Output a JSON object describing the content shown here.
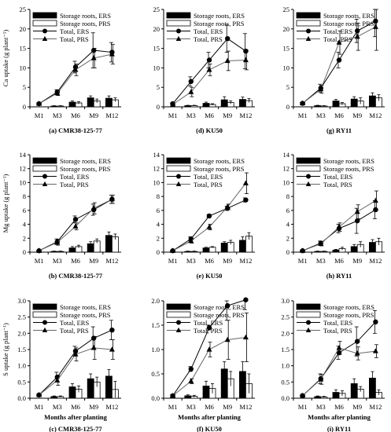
{
  "figure": {
    "categories": [
      "M1",
      "M3",
      "M6",
      "M9",
      "M12"
    ],
    "legend": [
      "Storage roots, ERS",
      "Storage roots, PRS",
      "Total, ERS",
      "Total, PRS"
    ],
    "row_ylabels": [
      "Ca uptake (g plant⁻¹)",
      "Mg uptake (g plant⁻¹)",
      "S uptake (g plant⁻¹)"
    ],
    "x_axis_title": "Months after planting",
    "colors": {
      "ers": "#000000",
      "prs": "#ffffff",
      "total_ers": "#000000",
      "total_prs": "#666666"
    }
  },
  "chart_data": [
    {
      "id": "a",
      "type": "bar",
      "caption": "(a) CMR38-125-77",
      "ylim": [
        0,
        25
      ],
      "yticks": [
        "0",
        "5",
        "10",
        "15",
        "20",
        "25"
      ],
      "categories": [
        "M1",
        "M3",
        "M6",
        "M9",
        "M12"
      ],
      "show_ylabel": true,
      "show_xtitle": false,
      "series": [
        {
          "name": "Storage roots, ERS",
          "kind": "bar",
          "values": [
            0,
            0.2,
            1.2,
            2.3,
            2.2
          ],
          "err": [
            0,
            0.1,
            0.3,
            0.5,
            0.6
          ]
        },
        {
          "name": "Storage roots, PRS",
          "kind": "bar",
          "values": [
            0,
            0.2,
            1.0,
            1.5,
            1.8
          ],
          "err": [
            0,
            0.1,
            0.3,
            0.5,
            0.5
          ]
        },
        {
          "name": "Total, ERS",
          "kind": "line",
          "values": [
            0.8,
            3.8,
            10.2,
            14.5,
            14.0
          ],
          "err": [
            0.2,
            0.6,
            1.5,
            4.5,
            2.5
          ]
        },
        {
          "name": "Total, PRS",
          "kind": "line",
          "values": [
            0.8,
            3.5,
            9.5,
            12.5,
            13.5
          ],
          "err": [
            0.2,
            0.6,
            1.5,
            2.5,
            2.5
          ]
        }
      ]
    },
    {
      "id": "d",
      "type": "bar",
      "caption": "(d) KU50",
      "ylim": [
        0,
        25
      ],
      "yticks": [
        "0",
        "5",
        "10",
        "15",
        "20",
        "25"
      ],
      "categories": [
        "M1",
        "M3",
        "M6",
        "M9",
        "M12"
      ],
      "show_ylabel": false,
      "show_xtitle": false,
      "series": [
        {
          "name": "Storage roots, ERS",
          "kind": "bar",
          "values": [
            0,
            0.3,
            0.9,
            1.8,
            1.9
          ],
          "err": [
            0,
            0.1,
            0.3,
            0.8,
            0.6
          ]
        },
        {
          "name": "Storage roots, PRS",
          "kind": "bar",
          "values": [
            0,
            0.3,
            0.6,
            1.1,
            1.6
          ],
          "err": [
            0,
            0.1,
            0.2,
            0.4,
            0.5
          ]
        },
        {
          "name": "Total, ERS",
          "kind": "line",
          "values": [
            0.8,
            6.5,
            12.0,
            17.5,
            14.3
          ],
          "err": [
            0.2,
            1.2,
            2.0,
            3.5,
            4.5
          ]
        },
        {
          "name": "Total, PRS",
          "kind": "line",
          "values": [
            0.6,
            3.8,
            9.5,
            11.8,
            12.0
          ],
          "err": [
            0.2,
            1.2,
            1.5,
            2.5,
            2.5
          ]
        }
      ]
    },
    {
      "id": "g",
      "type": "bar",
      "caption": "(g) RY11",
      "ylim": [
        0,
        25
      ],
      "yticks": [
        "0",
        "5",
        "10",
        "15",
        "20",
        "25"
      ],
      "categories": [
        "M1",
        "M3",
        "M6",
        "M9",
        "M12"
      ],
      "show_ylabel": false,
      "show_xtitle": false,
      "series": [
        {
          "name": "Storage roots, ERS",
          "kind": "bar",
          "values": [
            0,
            0.3,
            1.5,
            2.0,
            2.8
          ],
          "err": [
            0,
            0.1,
            0.4,
            0.6,
            0.8
          ]
        },
        {
          "name": "Storage roots, PRS",
          "kind": "bar",
          "values": [
            0,
            0.2,
            0.8,
            1.5,
            2.3
          ],
          "err": [
            0,
            0.1,
            0.3,
            0.8,
            0.8
          ]
        },
        {
          "name": "Total, ERS",
          "kind": "line",
          "values": [
            0.9,
            4.8,
            12.0,
            19.5,
            22.0
          ],
          "err": [
            0.2,
            1.0,
            2.0,
            3.0,
            4.0
          ]
        },
        {
          "name": "Total, PRS",
          "kind": "line",
          "values": [
            0.9,
            4.5,
            16.5,
            18.0,
            20.5
          ],
          "err": [
            0.2,
            1.0,
            3.0,
            3.5,
            6.0
          ]
        }
      ]
    },
    {
      "id": "b",
      "type": "bar",
      "caption": "(b) CMR38-125-77",
      "ylim": [
        0,
        14
      ],
      "yticks": [
        "0",
        "2",
        "4",
        "6",
        "8",
        "10",
        "12",
        "14"
      ],
      "categories": [
        "M1",
        "M3",
        "M6",
        "M9",
        "M12"
      ],
      "show_ylabel": true,
      "show_xtitle": false,
      "series": [
        {
          "name": "Storage roots, ERS",
          "kind": "bar",
          "values": [
            0,
            0.1,
            0.6,
            1.2,
            2.4
          ],
          "err": [
            0,
            0.05,
            0.2,
            0.3,
            0.5
          ]
        },
        {
          "name": "Storage roots, PRS",
          "kind": "bar",
          "values": [
            0,
            0.1,
            0.8,
            1.6,
            2.2
          ],
          "err": [
            0,
            0.05,
            0.2,
            0.3,
            0.4
          ]
        },
        {
          "name": "Total, ERS",
          "kind": "line",
          "values": [
            0.2,
            1.5,
            4.7,
            6.1,
            7.6
          ],
          "err": [
            0.05,
            0.4,
            0.5,
            0.8,
            0.6
          ]
        },
        {
          "name": "Total, PRS",
          "kind": "line",
          "values": [
            0.2,
            1.4,
            3.7,
            6.3,
            7.6
          ],
          "err": [
            0.05,
            0.4,
            0.5,
            0.8,
            0.6
          ]
        }
      ]
    },
    {
      "id": "e",
      "type": "bar",
      "caption": "(e) KU50",
      "ylim": [
        0,
        14
      ],
      "yticks": [
        "0",
        "2",
        "4",
        "6",
        "8",
        "10",
        "12",
        "14"
      ],
      "categories": [
        "M1",
        "M3",
        "M6",
        "M9",
        "M12"
      ],
      "show_ylabel": false,
      "show_xtitle": false,
      "series": [
        {
          "name": "Storage roots, ERS",
          "kind": "bar",
          "values": [
            0,
            0.1,
            0.6,
            1.3,
            1.7
          ],
          "err": [
            0,
            0.05,
            0.1,
            0.2,
            0.5
          ]
        },
        {
          "name": "Storage roots, PRS",
          "kind": "bar",
          "values": [
            0,
            0.1,
            0.7,
            1.4,
            2.3
          ],
          "err": [
            0,
            0.05,
            0.1,
            0.3,
            0.5
          ]
        },
        {
          "name": "Total, ERS",
          "kind": "line",
          "values": [
            0.2,
            1.9,
            5.2,
            6.3,
            7.5
          ],
          "err": [
            0.05,
            0.3,
            0.2,
            0.3,
            0.3
          ]
        },
        {
          "name": "Total, PRS",
          "kind": "line",
          "values": [
            0.2,
            1.6,
            3.6,
            6.5,
            9.9
          ],
          "err": [
            0.05,
            0.3,
            0.4,
            0.4,
            1.5
          ]
        }
      ]
    },
    {
      "id": "h",
      "type": "bar",
      "caption": "(h) RY11",
      "ylim": [
        0,
        14
      ],
      "yticks": [
        "0",
        "2",
        "4",
        "6",
        "8",
        "10",
        "12",
        "14"
      ],
      "categories": [
        "M1",
        "M3",
        "M6",
        "M9",
        "M12"
      ],
      "show_ylabel": false,
      "show_xtitle": false,
      "series": [
        {
          "name": "Storage roots, ERS",
          "kind": "bar",
          "values": [
            0,
            0.1,
            0.3,
            0.8,
            1.4
          ],
          "err": [
            0,
            0.05,
            0.1,
            0.3,
            0.4
          ]
        },
        {
          "name": "Storage roots, PRS",
          "kind": "bar",
          "values": [
            0,
            0.1,
            0.5,
            1.1,
            1.5
          ],
          "err": [
            0,
            0.05,
            0.2,
            0.4,
            0.5
          ]
        },
        {
          "name": "Total, ERS",
          "kind": "line",
          "values": [
            0.2,
            1.3,
            3.4,
            4.5,
            6.1
          ],
          "err": [
            0.05,
            0.3,
            0.6,
            1.8,
            1.3
          ]
        },
        {
          "name": "Total, PRS",
          "kind": "line",
          "values": [
            0.2,
            1.2,
            3.6,
            5.8,
            7.4
          ],
          "err": [
            0.05,
            0.3,
            0.6,
            1.0,
            1.4
          ]
        }
      ]
    },
    {
      "id": "c",
      "type": "bar",
      "caption": "(c) CMR38-125-77",
      "ylim": [
        0,
        3
      ],
      "yticks": [
        "0.0",
        "0.5",
        "1.0",
        "1.5",
        "2.0",
        "2.5",
        "3.0"
      ],
      "categories": [
        "M1",
        "M3",
        "M6",
        "M9",
        "M12"
      ],
      "show_ylabel": true,
      "show_xtitle": true,
      "series": [
        {
          "name": "Storage roots, ERS",
          "kind": "bar",
          "values": [
            0,
            0.05,
            0.35,
            0.6,
            0.68
          ],
          "err": [
            0,
            0.02,
            0.1,
            0.15,
            0.2
          ]
        },
        {
          "name": "Storage roots, PRS",
          "kind": "bar",
          "values": [
            0,
            0.05,
            0.28,
            0.5,
            0.27
          ],
          "err": [
            0,
            0.02,
            0.1,
            0.15,
            0.25
          ]
        },
        {
          "name": "Total, ERS",
          "kind": "line",
          "values": [
            0.1,
            0.65,
            1.45,
            1.85,
            2.1
          ],
          "err": [
            0.02,
            0.15,
            0.15,
            0.35,
            0.3
          ]
        },
        {
          "name": "Total, PRS",
          "kind": "line",
          "values": [
            0.1,
            0.55,
            1.35,
            1.55,
            1.5
          ],
          "err": [
            0.02,
            0.15,
            0.2,
            0.35,
            0.3
          ]
        }
      ]
    },
    {
      "id": "f",
      "type": "bar",
      "caption": "(f) KU50",
      "ylim": [
        0,
        2
      ],
      "yticks": [
        "0.0",
        "0.5",
        "1.0",
        "1.5",
        "2.0"
      ],
      "categories": [
        "M1",
        "M3",
        "M6",
        "M9",
        "M12"
      ],
      "show_ylabel": false,
      "show_xtitle": true,
      "series": [
        {
          "name": "Storage roots, ERS",
          "kind": "bar",
          "values": [
            0,
            0.05,
            0.25,
            0.6,
            0.55
          ],
          "err": [
            0,
            0.02,
            0.1,
            0.15,
            0.2
          ]
        },
        {
          "name": "Storage roots, PRS",
          "kind": "bar",
          "values": [
            0,
            0.04,
            0.2,
            0.4,
            0.3
          ],
          "err": [
            0,
            0.02,
            0.1,
            0.15,
            0.2
          ]
        },
        {
          "name": "Total, ERS",
          "kind": "line",
          "values": [
            0.05,
            0.6,
            1.45,
            1.9,
            2.02
          ],
          "err": [
            0.02,
            0.05,
            0.05,
            0.3,
            0.2
          ]
        },
        {
          "name": "Total, PRS",
          "kind": "line",
          "values": [
            0.05,
            0.35,
            1.0,
            1.2,
            1.25
          ],
          "err": [
            0.02,
            0.05,
            0.15,
            0.4,
            0.5
          ]
        }
      ]
    },
    {
      "id": "i",
      "type": "bar",
      "caption": "(i) RY11",
      "ylim": [
        0,
        3
      ],
      "yticks": [
        "0.0",
        "0.5",
        "1.0",
        "1.5",
        "2.0",
        "2.5",
        "3.0"
      ],
      "categories": [
        "M1",
        "M3",
        "M6",
        "M9",
        "M12"
      ],
      "show_ylabel": false,
      "show_xtitle": true,
      "series": [
        {
          "name": "Storage roots, ERS",
          "kind": "bar",
          "values": [
            0,
            0.05,
            0.18,
            0.45,
            0.62
          ],
          "err": [
            0,
            0.02,
            0.08,
            0.15,
            0.2
          ]
        },
        {
          "name": "Storage roots, PRS",
          "kind": "bar",
          "values": [
            0,
            0.04,
            0.15,
            0.28,
            0.18
          ],
          "err": [
            0,
            0.02,
            0.08,
            0.08,
            0.08
          ]
        },
        {
          "name": "Total, ERS",
          "kind": "line",
          "values": [
            0.08,
            0.6,
            1.4,
            1.75,
            2.35
          ],
          "err": [
            0.02,
            0.15,
            0.2,
            0.45,
            0.35
          ]
        },
        {
          "name": "Total, PRS",
          "kind": "line",
          "values": [
            0.08,
            0.58,
            1.55,
            1.38,
            1.45
          ],
          "err": [
            0.02,
            0.15,
            0.2,
            0.2,
            0.2
          ]
        }
      ]
    }
  ]
}
